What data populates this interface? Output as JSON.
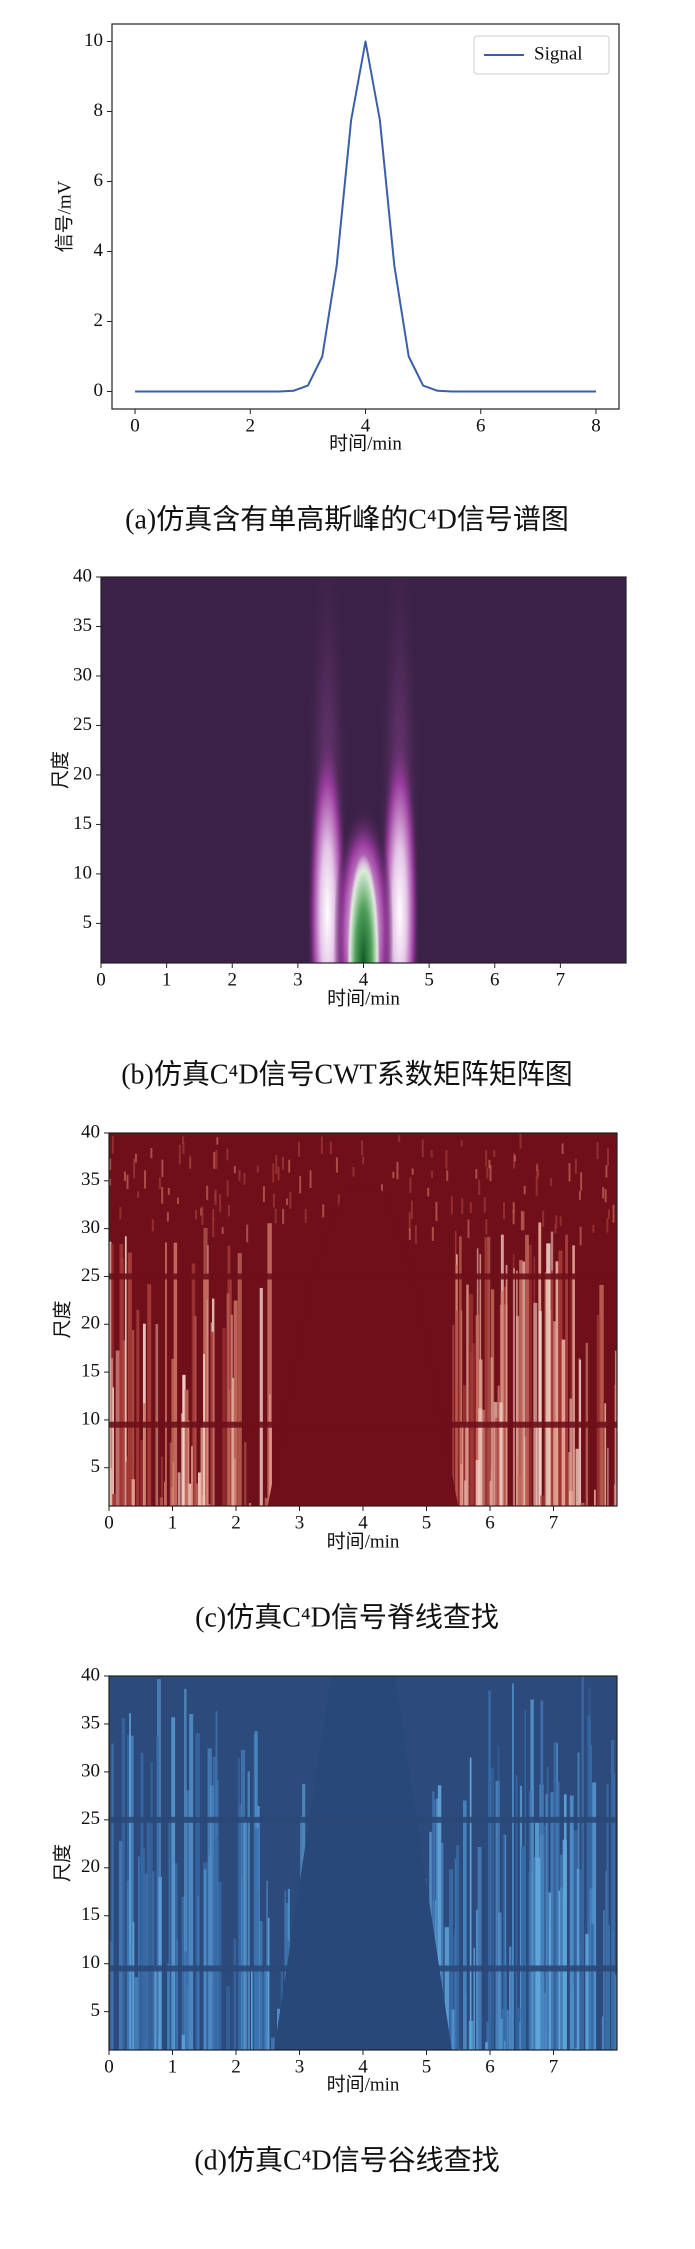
{
  "chart_data": [
    {
      "type": "line",
      "caption": "(a)仿真含有单高斯峰的C⁴D信号谱图",
      "xlabel": "时间/min",
      "ylabel": "信号/mV",
      "x": [
        0,
        0.25,
        0.5,
        0.75,
        1,
        1.25,
        1.5,
        1.75,
        2,
        2.25,
        2.5,
        2.75,
        3,
        3.25,
        3.5,
        3.75,
        4,
        4.25,
        4.5,
        4.75,
        5,
        5.25,
        5.5,
        5.75,
        6,
        6.25,
        6.5,
        6.75,
        7,
        7.25,
        7.5,
        7.75,
        8
      ],
      "series": [
        {
          "name": "Signal",
          "color": "#3a5fa8",
          "values": [
            0,
            0,
            0,
            0,
            0,
            0,
            0,
            0,
            0,
            0,
            0,
            0.02,
            0.17,
            1.0,
            3.6,
            7.75,
            10,
            7.75,
            3.6,
            1.0,
            0.17,
            0.02,
            0,
            0,
            0,
            0,
            0,
            0,
            0,
            0,
            0,
            0,
            0
          ]
        }
      ],
      "xlim": [
        -0.4,
        8.4
      ],
      "xticks": [
        0,
        2,
        4,
        6,
        8
      ],
      "ylim": [
        -0.5,
        10.5
      ],
      "yticks": [
        0,
        2,
        4,
        6,
        8,
        10
      ],
      "legend": "upper right"
    },
    {
      "type": "heatmap",
      "caption": "(b)仿真C⁴D信号CWT系数矩阵矩阵图",
      "xlabel": "时间/min",
      "ylabel": "尺度",
      "xlim": [
        0,
        8
      ],
      "xticks": [
        0,
        1,
        2,
        3,
        4,
        5,
        6,
        7
      ],
      "ylim": [
        1,
        40
      ],
      "yticks": [
        5,
        10,
        15,
        20,
        25,
        30,
        35,
        40
      ]
    },
    {
      "type": "heatmap",
      "caption": "(c)仿真C⁴D信号脊线查找",
      "xlabel": "时间/min",
      "ylabel": "尺度",
      "xlim": [
        0,
        8
      ],
      "xticks": [
        0,
        1,
        2,
        3,
        4,
        5,
        6,
        7
      ],
      "ylim": [
        1,
        40
      ],
      "yticks": [
        5,
        10,
        15,
        20,
        25,
        30,
        35,
        40
      ]
    },
    {
      "type": "heatmap",
      "caption": "(d)仿真C⁴D信号谷线查找",
      "xlabel": "时间/min",
      "ylabel": "尺度",
      "xlim": [
        0,
        8
      ],
      "xticks": [
        0,
        1,
        2,
        3,
        4,
        5,
        6,
        7
      ],
      "ylim": [
        1,
        40
      ],
      "yticks": [
        5,
        10,
        15,
        20,
        25,
        30,
        35,
        40
      ]
    }
  ]
}
